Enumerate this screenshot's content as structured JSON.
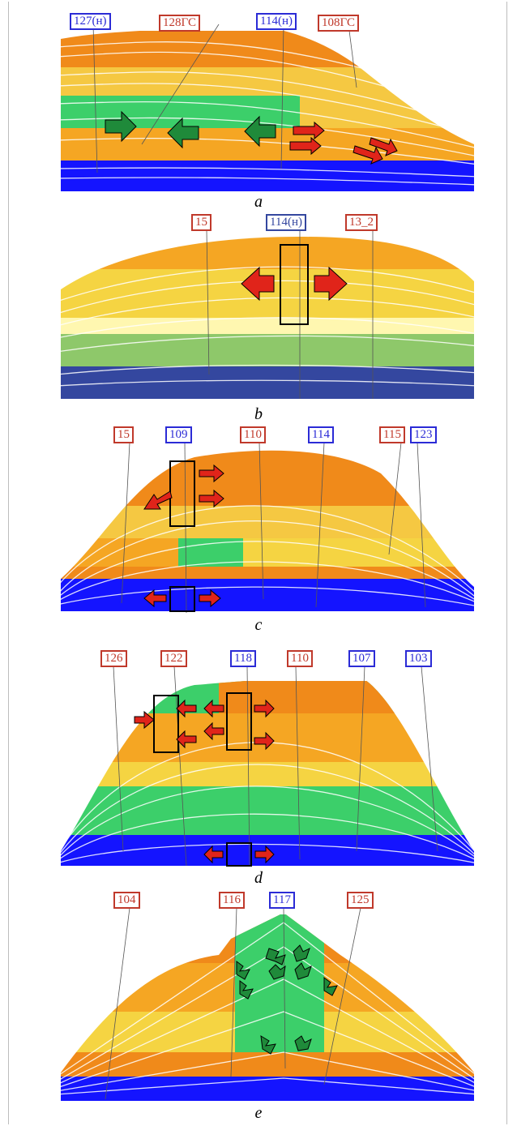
{
  "colors": {
    "injection_well": "#2b2bd6",
    "production_well": "#c0392b",
    "low_layer": "#1414ff",
    "orange": "#f08a1a",
    "yellow": "#f5c842",
    "green": "#3ccf6a",
    "green_arrow": "#1f8a3a",
    "red_arrow": "#e0241a"
  },
  "panels": [
    {
      "id": "a",
      "caption": "a",
      "wells": [
        {
          "label": "127(н)",
          "type": "injection"
        },
        {
          "label": "128ГС",
          "type": "production"
        },
        {
          "label": "114(н)",
          "type": "injection"
        },
        {
          "label": "108ГС",
          "type": "production"
        }
      ]
    },
    {
      "id": "b",
      "caption": "b",
      "wells": [
        {
          "label": "15",
          "type": "production"
        },
        {
          "label": "114(н)",
          "type": "injection"
        },
        {
          "label": "13_2",
          "type": "production"
        }
      ]
    },
    {
      "id": "c",
      "caption": "c",
      "wells": [
        {
          "label": "15",
          "type": "production"
        },
        {
          "label": "109",
          "type": "injection"
        },
        {
          "label": "110",
          "type": "production"
        },
        {
          "label": "114",
          "type": "injection"
        },
        {
          "label": "115",
          "type": "production"
        },
        {
          "label": "123",
          "type": "injection"
        }
      ]
    },
    {
      "id": "d",
      "caption": "d",
      "wells": [
        {
          "label": "126",
          "type": "production"
        },
        {
          "label": "122",
          "type": "production"
        },
        {
          "label": "118",
          "type": "injection"
        },
        {
          "label": "110",
          "type": "production"
        },
        {
          "label": "107",
          "type": "injection"
        },
        {
          "label": "103",
          "type": "injection"
        }
      ]
    },
    {
      "id": "e",
      "caption": "e",
      "wells": [
        {
          "label": "104",
          "type": "production"
        },
        {
          "label": "116",
          "type": "production"
        },
        {
          "label": "117",
          "type": "injection"
        },
        {
          "label": "125",
          "type": "production"
        }
      ]
    }
  ]
}
